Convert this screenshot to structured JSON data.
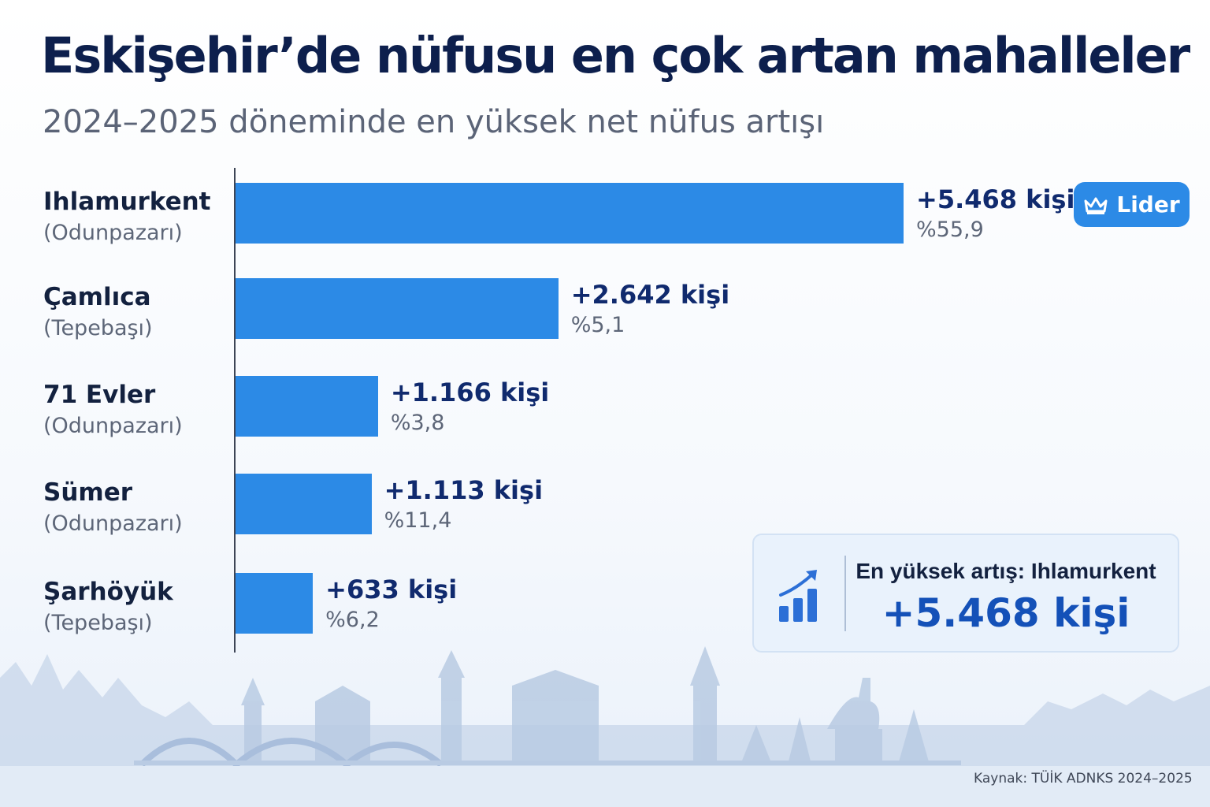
{
  "title": "Eskişehir’de nüfusu en çok artan mahalleler",
  "subtitle": "2024–2025 döneminde en yüksek net nüfus artışı",
  "colors": {
    "bar": "#2c8ae6",
    "title": "#0d1f4d",
    "value": "#102a6e",
    "accent": "#1451b8"
  },
  "chart_data": {
    "type": "bar",
    "orientation": "horizontal",
    "title": "Eskişehir’de nüfusu en çok artan mahalleler",
    "subtitle": "2024–2025 döneminde en yüksek net nüfus artışı",
    "xlim": [
      0,
      5700
    ],
    "grid": false,
    "legend": "none",
    "categories": [
      "Ihlamurkent",
      "Çamlıca",
      "71 Evler",
      "Sümer",
      "Şarhöyük"
    ],
    "districts": [
      "(Odunpazarı)",
      "(Tepebaşı)",
      "(Odunpazarı)",
      "(Odunpazarı)",
      "(Tepebaşı)"
    ],
    "values": [
      5468,
      2642,
      1166,
      1113,
      633
    ],
    "value_labels": [
      "+5.468 kişi",
      "+2.642 kişi",
      "+1.166 kişi",
      "+1.113 kişi",
      "+633 kişi"
    ],
    "percent_labels": [
      "%55,9",
      "%5,1",
      "%3,8",
      "%11,4",
      "%6,2"
    ]
  },
  "badge": {
    "label": "Lider",
    "icon": "crown-icon"
  },
  "callout": {
    "label": "En yüksek artış: Ihlamurkent",
    "value": "+5.468 kişi",
    "icon": "growth-chart-icon"
  },
  "source": "Kaynak: TÜİK ADNKS 2024–2025"
}
